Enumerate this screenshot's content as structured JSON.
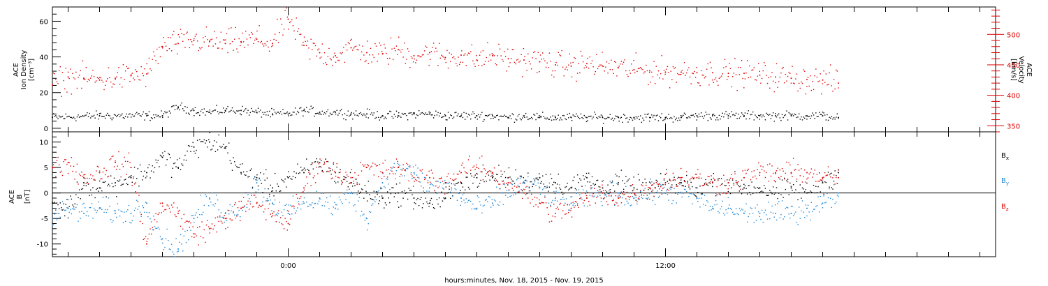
{
  "chart_data": [
    {
      "type": "scatter",
      "ylabel_lines": [
        "ACE",
        "Ion Density",
        "[cm⁻³]"
      ],
      "ylabel_right_lines": [
        "ACE",
        "Velocity",
        "[km/s]"
      ],
      "ylim": [
        -2,
        68
      ],
      "yticks": [
        0,
        20,
        40,
        60
      ],
      "ylim_right": [
        340,
        545
      ],
      "yticks_right": [
        350,
        400,
        450,
        500
      ],
      "right_axis_color": "#dd0000",
      "xlim_hours": [
        -7.5,
        22.5
      ],
      "series": [
        {
          "color": "#000000",
          "x": [
            -7.5,
            -6,
            -4.5,
            -4,
            -3.5,
            -3,
            -2.5,
            -2,
            -1.5,
            -1,
            -0.5,
            0,
            0.5,
            1,
            1.5,
            2,
            2.5,
            3,
            3.5,
            4,
            4.5,
            5,
            5.5,
            6,
            6.5,
            7,
            7.5,
            8,
            8.5,
            9,
            9.5,
            10,
            10.5,
            11,
            11.5,
            12,
            12.5,
            13,
            13.5,
            14,
            14.5,
            15,
            15.5,
            16,
            16.5,
            17,
            17.5
          ],
          "y": [
            6,
            7,
            7,
            7,
            12,
            10,
            9,
            10,
            10,
            9,
            8,
            8,
            10,
            9,
            9,
            8,
            8,
            7,
            7,
            8,
            8,
            7,
            7,
            7,
            7,
            6,
            7,
            6,
            6,
            6,
            6,
            6,
            6,
            6,
            6,
            6,
            6,
            7,
            7,
            7,
            7,
            7,
            7,
            7,
            7,
            7,
            6
          ]
        },
        {
          "color": "#dd0000",
          "axis": "right",
          "x": [
            -7.5,
            -7,
            -6.5,
            -6,
            -5.5,
            -5,
            -4.5,
            -4,
            -3.5,
            -3,
            -2.5,
            -2,
            -1.5,
            -1,
            -0.5,
            0,
            0.5,
            1,
            1.5,
            2,
            2.5,
            3,
            3.5,
            4,
            4.5,
            5,
            5.5,
            6,
            6.5,
            7,
            7.5,
            8,
            8.5,
            9,
            9.5,
            10,
            10.5,
            11,
            11.5,
            12,
            12.5,
            13,
            13.5,
            14,
            14.5,
            15,
            15.5,
            16,
            16.5,
            17,
            17.5
          ],
          "y": [
            418,
            430,
            428,
            425,
            428,
            432,
            435,
            480,
            485,
            490,
            488,
            485,
            488,
            492,
            485,
            525,
            482,
            470,
            465,
            478,
            470,
            468,
            475,
            465,
            470,
            462,
            466,
            458,
            465,
            460,
            458,
            455,
            450,
            448,
            452,
            448,
            445,
            442,
            440,
            438,
            438,
            437,
            437,
            436,
            436,
            433,
            430,
            428,
            426,
            425,
            420
          ]
        }
      ]
    },
    {
      "type": "scatter",
      "ylabel_lines": [
        "ACE",
        "B",
        "[nT]"
      ],
      "ylim": [
        -12.5,
        12
      ],
      "yticks": [
        -10,
        -5,
        0,
        5,
        10
      ],
      "xlim_hours": [
        -7.5,
        22.5
      ],
      "xticks": [
        {
          "hour": 0,
          "label": "0:00"
        },
        {
          "hour": 12,
          "label": "12:00"
        }
      ],
      "xlabel": "hours:minutes, Nov. 18, 2015 - Nov. 19, 2015",
      "legend": [
        {
          "main": "B",
          "sub": "x",
          "color": "#000000"
        },
        {
          "main": "B",
          "sub": "y",
          "color": "#1e88d8"
        },
        {
          "main": "B",
          "sub": "z",
          "color": "#dd0000"
        }
      ],
      "series": [
        {
          "name": "Bx",
          "color": "#000000",
          "x": [
            -7.5,
            -7,
            -6.5,
            -6,
            -5.5,
            -5,
            -4.5,
            -4,
            -3.5,
            -3,
            -2.5,
            -2,
            -1.5,
            -1,
            -0.5,
            0,
            0.5,
            1,
            1.5,
            2,
            2.5,
            3,
            3.5,
            4,
            4.5,
            5,
            5.5,
            6,
            6.5,
            7,
            7.5,
            8,
            8.5,
            9,
            9.5,
            10,
            10.5,
            11,
            11.5,
            12,
            12.5,
            13,
            13.5,
            14,
            14.5,
            15,
            15.5,
            16,
            16.5,
            17,
            17.5
          ],
          "y": [
            -2,
            -3,
            2,
            1,
            2,
            3,
            4,
            7,
            5,
            9,
            10,
            9,
            4,
            3,
            1,
            3,
            4,
            6,
            4,
            2,
            0,
            -1,
            0,
            -1,
            -2,
            -1,
            2,
            3,
            3,
            3,
            2,
            3,
            2,
            1,
            3,
            1,
            2,
            1,
            1,
            2,
            2,
            1,
            2,
            2,
            1,
            1,
            0,
            1,
            0,
            2,
            4
          ]
        },
        {
          "name": "By",
          "color": "#1e88d8",
          "x": [
            -7.5,
            -7,
            -6.5,
            -6,
            -5.5,
            -5,
            -4.5,
            -4,
            -3.5,
            -3,
            -2.5,
            -2,
            -1.5,
            -1,
            -0.5,
            0,
            0.5,
            1,
            1.5,
            2,
            2.5,
            3,
            3.5,
            4,
            4.5,
            5,
            5.5,
            6,
            6.5,
            7,
            7.5,
            8,
            8.5,
            9,
            9.5,
            10,
            10.5,
            11,
            11.5,
            12,
            12.5,
            13,
            13.5,
            14,
            14.5,
            15,
            15.5,
            16,
            16.5,
            17,
            17.5
          ],
          "y": [
            -5,
            -3,
            -4,
            -3,
            -4,
            -4,
            -2,
            -9,
            -11,
            -5,
            -1,
            -4,
            -3,
            2,
            -2,
            -4,
            -2,
            -1,
            -3,
            0,
            -5,
            2,
            5,
            4,
            1,
            2,
            -1,
            -3,
            -2,
            0,
            2,
            1,
            -1,
            -2,
            -1,
            0,
            0,
            -1,
            0,
            0,
            0,
            -1,
            -3,
            -3,
            -4,
            -4,
            -4,
            -4,
            -3,
            -2,
            0
          ]
        },
        {
          "name": "Bz",
          "color": "#dd0000",
          "x": [
            -7.5,
            -7,
            -6.5,
            -6,
            -5.5,
            -5,
            -4.5,
            -4,
            -3.5,
            -3,
            -2.5,
            -2,
            -1.5,
            -1,
            -0.5,
            0,
            0.5,
            1,
            1.5,
            2,
            2.5,
            3,
            3.5,
            4,
            4.5,
            5,
            5.5,
            6,
            6.5,
            7,
            7.5,
            8,
            8.5,
            9,
            9.5,
            10,
            10.5,
            11,
            11.5,
            12,
            12.5,
            13,
            13.5,
            14,
            14.5,
            15,
            15.5,
            16,
            16.5,
            17,
            17.5
          ],
          "y": [
            5,
            6,
            3,
            4,
            6,
            5,
            -10,
            -2,
            -4,
            -8,
            -7,
            -5,
            -3,
            -2,
            -4,
            -6,
            1,
            6,
            4,
            3,
            5,
            4,
            5,
            3,
            3,
            2,
            4,
            5,
            4,
            2,
            0,
            -2,
            -4,
            -3,
            -1,
            0,
            -1,
            0,
            1,
            2,
            3,
            3,
            2,
            2,
            3,
            4,
            4,
            4,
            4,
            3,
            3
          ]
        }
      ]
    }
  ]
}
